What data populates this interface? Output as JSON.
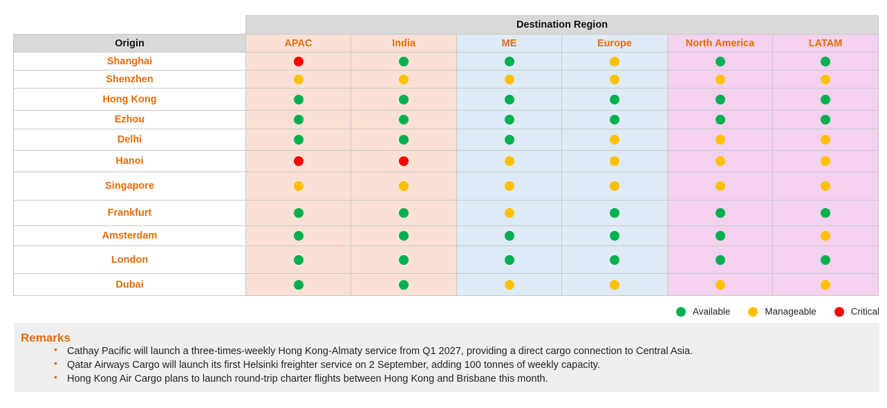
{
  "chart_data": {
    "type": "table",
    "header_group": "Destination Region",
    "row_header": "Origin",
    "columns": [
      {
        "label": "APAC",
        "bg": "#fbe1d5"
      },
      {
        "label": "India",
        "bg": "#fbe1d5"
      },
      {
        "label": "ME",
        "bg": "#deebf7"
      },
      {
        "label": "Europe",
        "bg": "#deebf7"
      },
      {
        "label": "North America",
        "bg": "#f4d1ee"
      },
      {
        "label": "LATAM",
        "bg": "#f4d1ee"
      }
    ],
    "rows": [
      {
        "origin": "Shanghai",
        "status": [
          "critical",
          "available",
          "available",
          "manageable",
          "available",
          "available"
        ]
      },
      {
        "origin": "Shenzhen",
        "status": [
          "manageable",
          "manageable",
          "manageable",
          "manageable",
          "manageable",
          "manageable"
        ]
      },
      {
        "origin": "Hong Kong",
        "status": [
          "available",
          "available",
          "available",
          "available",
          "available",
          "available"
        ]
      },
      {
        "origin": "Ezhou",
        "status": [
          "available",
          "available",
          "available",
          "available",
          "available",
          "available"
        ]
      },
      {
        "origin": "Delhi",
        "status": [
          "available",
          "available",
          "available",
          "manageable",
          "manageable",
          "manageable"
        ]
      },
      {
        "origin": "Hanoi",
        "status": [
          "critical",
          "critical",
          "manageable",
          "manageable",
          "manageable",
          "manageable"
        ]
      },
      {
        "origin": "Singapore",
        "status": [
          "manageable",
          "manageable",
          "manageable",
          "manageable",
          "manageable",
          "manageable"
        ]
      },
      {
        "origin": "Frankfurt",
        "status": [
          "available",
          "available",
          "manageable",
          "available",
          "available",
          "available"
        ]
      },
      {
        "origin": "Amsterdam",
        "status": [
          "available",
          "available",
          "available",
          "available",
          "available",
          "manageable"
        ]
      },
      {
        "origin": "London",
        "status": [
          "available",
          "available",
          "available",
          "available",
          "available",
          "available"
        ]
      },
      {
        "origin": "Dubai",
        "status": [
          "available",
          "available",
          "manageable",
          "manageable",
          "manageable",
          "manageable"
        ]
      }
    ],
    "status_colors": {
      "available": "#00b050",
      "manageable": "#ffc000",
      "critical": "#ff0000"
    },
    "legend": [
      {
        "key": "available",
        "label": "Available"
      },
      {
        "key": "manageable",
        "label": "Manageable"
      },
      {
        "key": "critical",
        "label": "Critical"
      }
    ],
    "legend_position": "bottom-right"
  },
  "remarks": {
    "title": "Remarks",
    "items": [
      "Cathay Pacific will launch a three-times-weekly Hong Kong-Almaty service from Q1 2027, providing a direct cargo connection to Central Asia.",
      "Qatar Airways Cargo will launch its first Helsinki freighter service on 2 September, adding 100 tonnes of weekly capacity.",
      "Hong Kong Air Cargo plans to launch round-trip charter flights between Hong Kong and Brisbane this month."
    ]
  }
}
